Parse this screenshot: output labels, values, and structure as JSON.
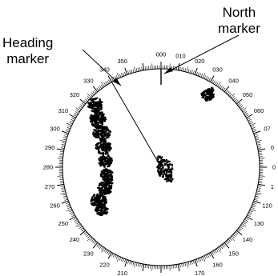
{
  "callouts": {
    "north": {
      "line1": "North",
      "line2": "marker"
    },
    "heading": {
      "line1": "Heading",
      "line2": "marker"
    }
  },
  "scale": {
    "labels": [
      "000",
      "010",
      "020",
      "030",
      "040",
      "050",
      "060",
      "07",
      "0",
      "0",
      "1",
      "120",
      "130",
      "140",
      "150",
      "160",
      "170",
      "180",
      "190",
      "200",
      "210",
      "220",
      "230",
      "240",
      "250",
      "260",
      "270",
      "280",
      "290",
      "300",
      "310",
      "320",
      "330",
      "340",
      "350"
    ]
  },
  "heading_bearing_deg": 330,
  "colors": {
    "ink": "#000000",
    "background": "#ffffff"
  }
}
